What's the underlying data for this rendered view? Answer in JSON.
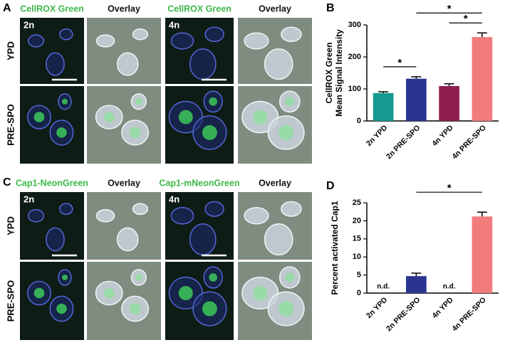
{
  "micrographs": [
    {
      "panel": "A",
      "headers": [
        "CellROX Green",
        "Overlay",
        "CellROX Green",
        "Overlay"
      ],
      "rows": [
        "YPD",
        "PRE-SPO"
      ],
      "ploidy": [
        "2n",
        "4n"
      ]
    },
    {
      "panel": "C",
      "headers": [
        "Cap1-NeonGreen",
        "Overlay",
        "Cap1-mNeonGreen",
        "Overlay"
      ],
      "rows": [
        "YPD",
        "PRE-SPO"
      ],
      "ploidy": [
        "2n",
        "4n"
      ]
    }
  ],
  "chart_data": [
    {
      "panel": "B",
      "type": "bar",
      "ylabel": [
        "CellROX Green",
        "Mean Signal Intensity"
      ],
      "categories": [
        "2n YPD",
        "2n PRE-SPO",
        "4n YPD",
        "4n PRE-SPO"
      ],
      "values": [
        87,
        132,
        109,
        262
      ],
      "errors": [
        4,
        6,
        7,
        13
      ],
      "colors": [
        "#149a8e",
        "#2b3590",
        "#8e1d4e",
        "#f27b7b"
      ],
      "ylim": [
        0,
        300
      ],
      "yticks": [
        0,
        100,
        200,
        300
      ],
      "annotations": [
        {
          "between": [
            0,
            1
          ],
          "text": "*"
        },
        {
          "between": [
            2,
            3
          ],
          "text": "*"
        },
        {
          "between": [
            1,
            3
          ],
          "text": "*"
        }
      ]
    },
    {
      "panel": "D",
      "type": "bar",
      "ylabel": "Percent activated Cap1",
      "categories": [
        "2n YPD",
        "2n PRE-SPO",
        "4n YPD",
        "4n PRE-SPO"
      ],
      "values": [
        null,
        4.7,
        null,
        21.2
      ],
      "value_labels": [
        "n.d.",
        null,
        "n.d.",
        null
      ],
      "errors": [
        null,
        0.8,
        null,
        1.2
      ],
      "colors": [
        "#149a8e",
        "#2b3590",
        "#8e1d4e",
        "#f27b7b"
      ],
      "ylim": [
        0,
        25
      ],
      "yticks": [
        0,
        5,
        10,
        15,
        20,
        25
      ],
      "annotations": [
        {
          "between": [
            1,
            3
          ],
          "text": "*"
        }
      ]
    }
  ]
}
